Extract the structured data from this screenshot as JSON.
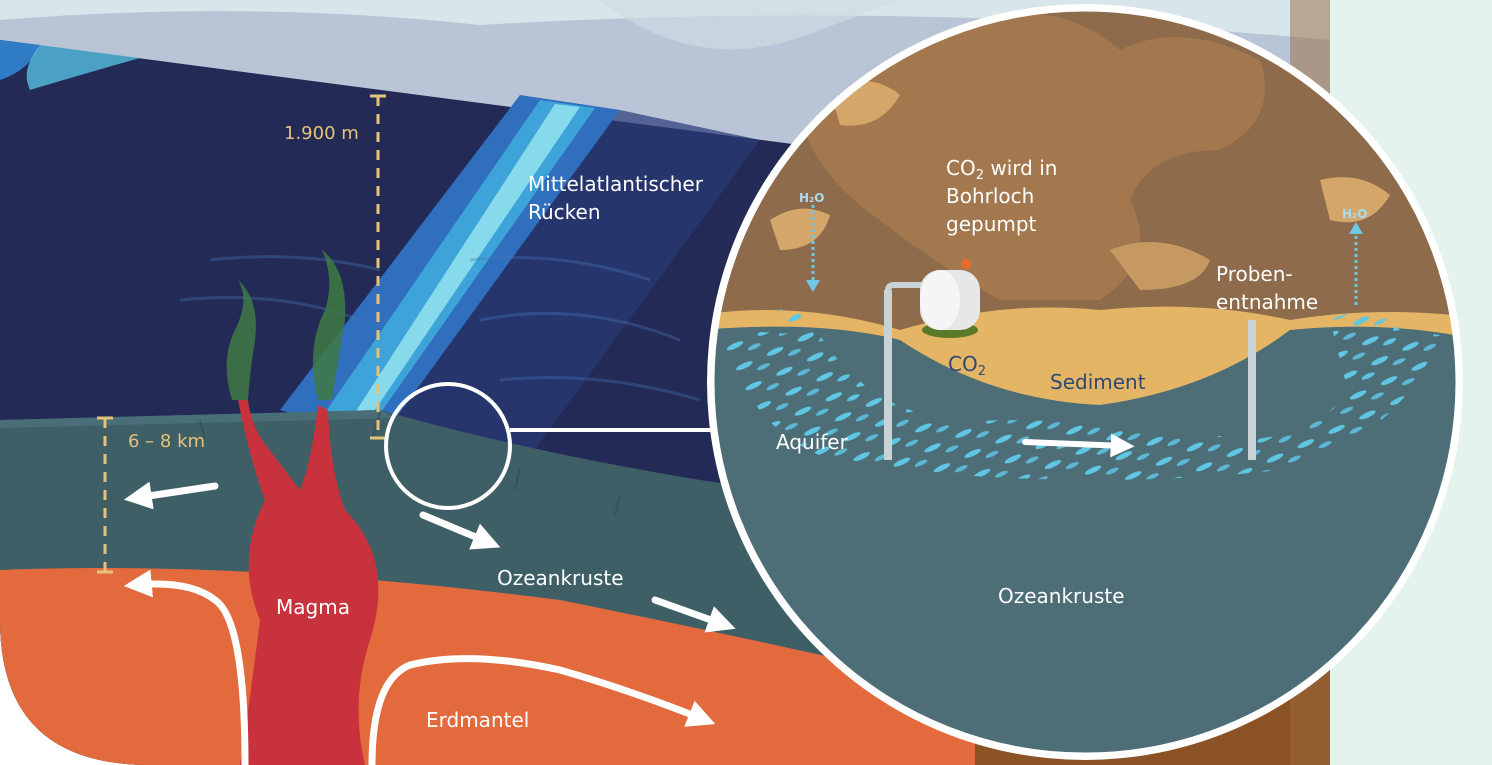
{
  "labels": {
    "depth_water": "1.900 m",
    "depth_crust": "6 – 8 km",
    "ridge_line1": "Mittelatlantischer",
    "ridge_line2": "Rücken",
    "magma": "Magma",
    "ocean_crust_left": "Ozeankruste",
    "mantle": "Erdmantel",
    "co2_pumped_line1_main": "CO",
    "co2_pumped_line1_sub": "2",
    "co2_pumped_line1_rest": " wird in",
    "co2_pumped_line2": "Bohrloch",
    "co2_pumped_line3": "gepumpt",
    "h2o_left": "H₂O",
    "h2o_right": "H₂O",
    "sampling_line1": "Proben-",
    "sampling_line2": "entnahme",
    "co2_small_main": "CO",
    "co2_small_sub": "2",
    "sediment": "Sediment",
    "aquifer": "Aquifer",
    "ocean_crust_inset": "Ozeankruste"
  },
  "colors": {
    "deep_sea": "#222a55",
    "crust": "#3f5f67",
    "mantle": "#e26a3c",
    "magma": "#c8323d",
    "ridge_light": "#5cc4e0",
    "ridge_mid": "#3a8ccf",
    "rock_brown": "#a3784e",
    "sediment": "#e3b565",
    "water_drops": "#5fc6e4",
    "depth_marker": "#e7c27a",
    "side_panel": "#e5f3ee"
  }
}
